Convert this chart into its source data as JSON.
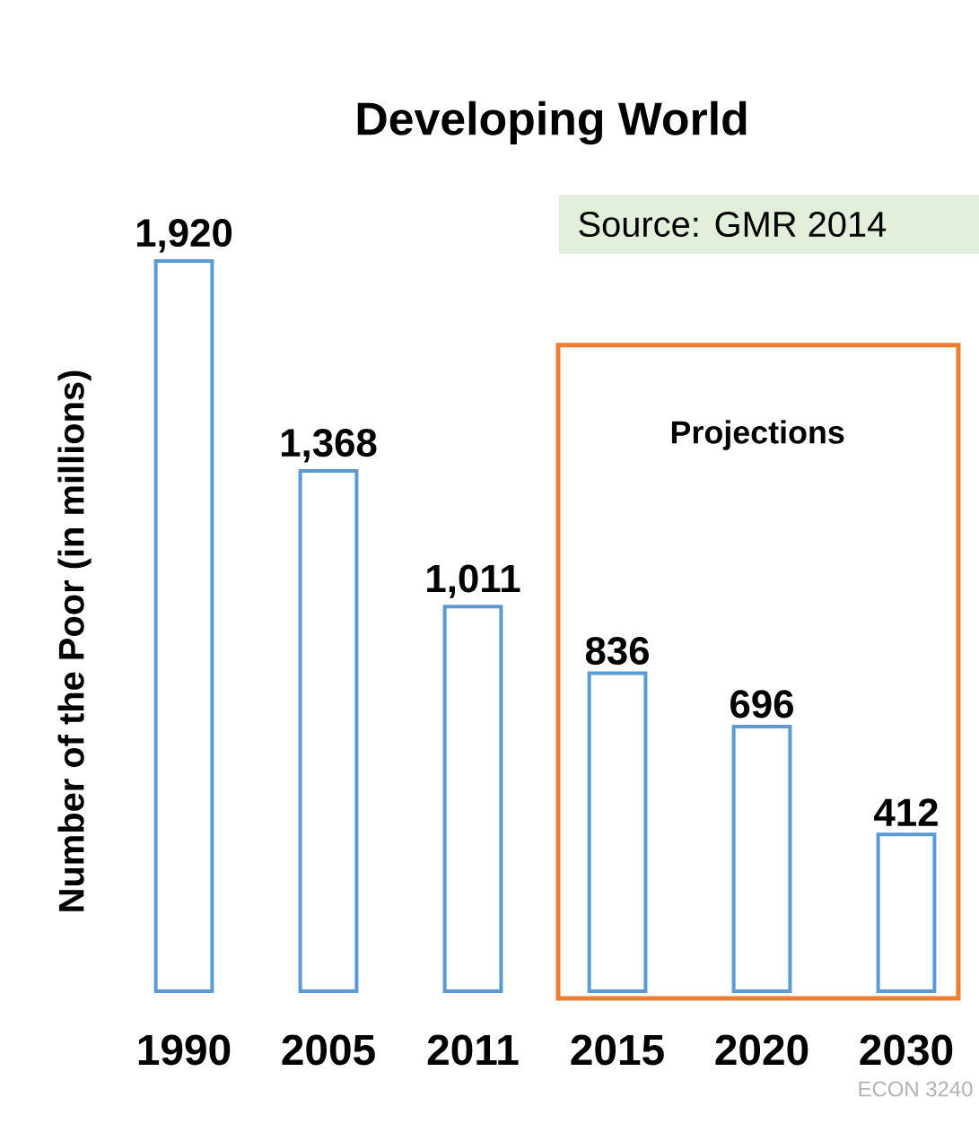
{
  "chart_data": {
    "type": "bar",
    "title": "Developing World",
    "ylabel": "Number of the Poor (in millions)",
    "categories": [
      "1990",
      "2005",
      "2011",
      "2015",
      "2020",
      "2030"
    ],
    "values": [
      1920,
      1368,
      1011,
      836,
      696,
      412
    ],
    "value_labels": [
      "1,920",
      "1,368",
      "1,011",
      "836",
      "696",
      "412"
    ],
    "color": "#5b9bd5",
    "bands": [
      {
        "axis": "x",
        "from": "2015",
        "to": "2030",
        "label": "Projections",
        "color": "#ed7d31"
      }
    ],
    "annotations": [
      "Source: GMR 2014",
      "ECON 3240"
    ]
  }
}
